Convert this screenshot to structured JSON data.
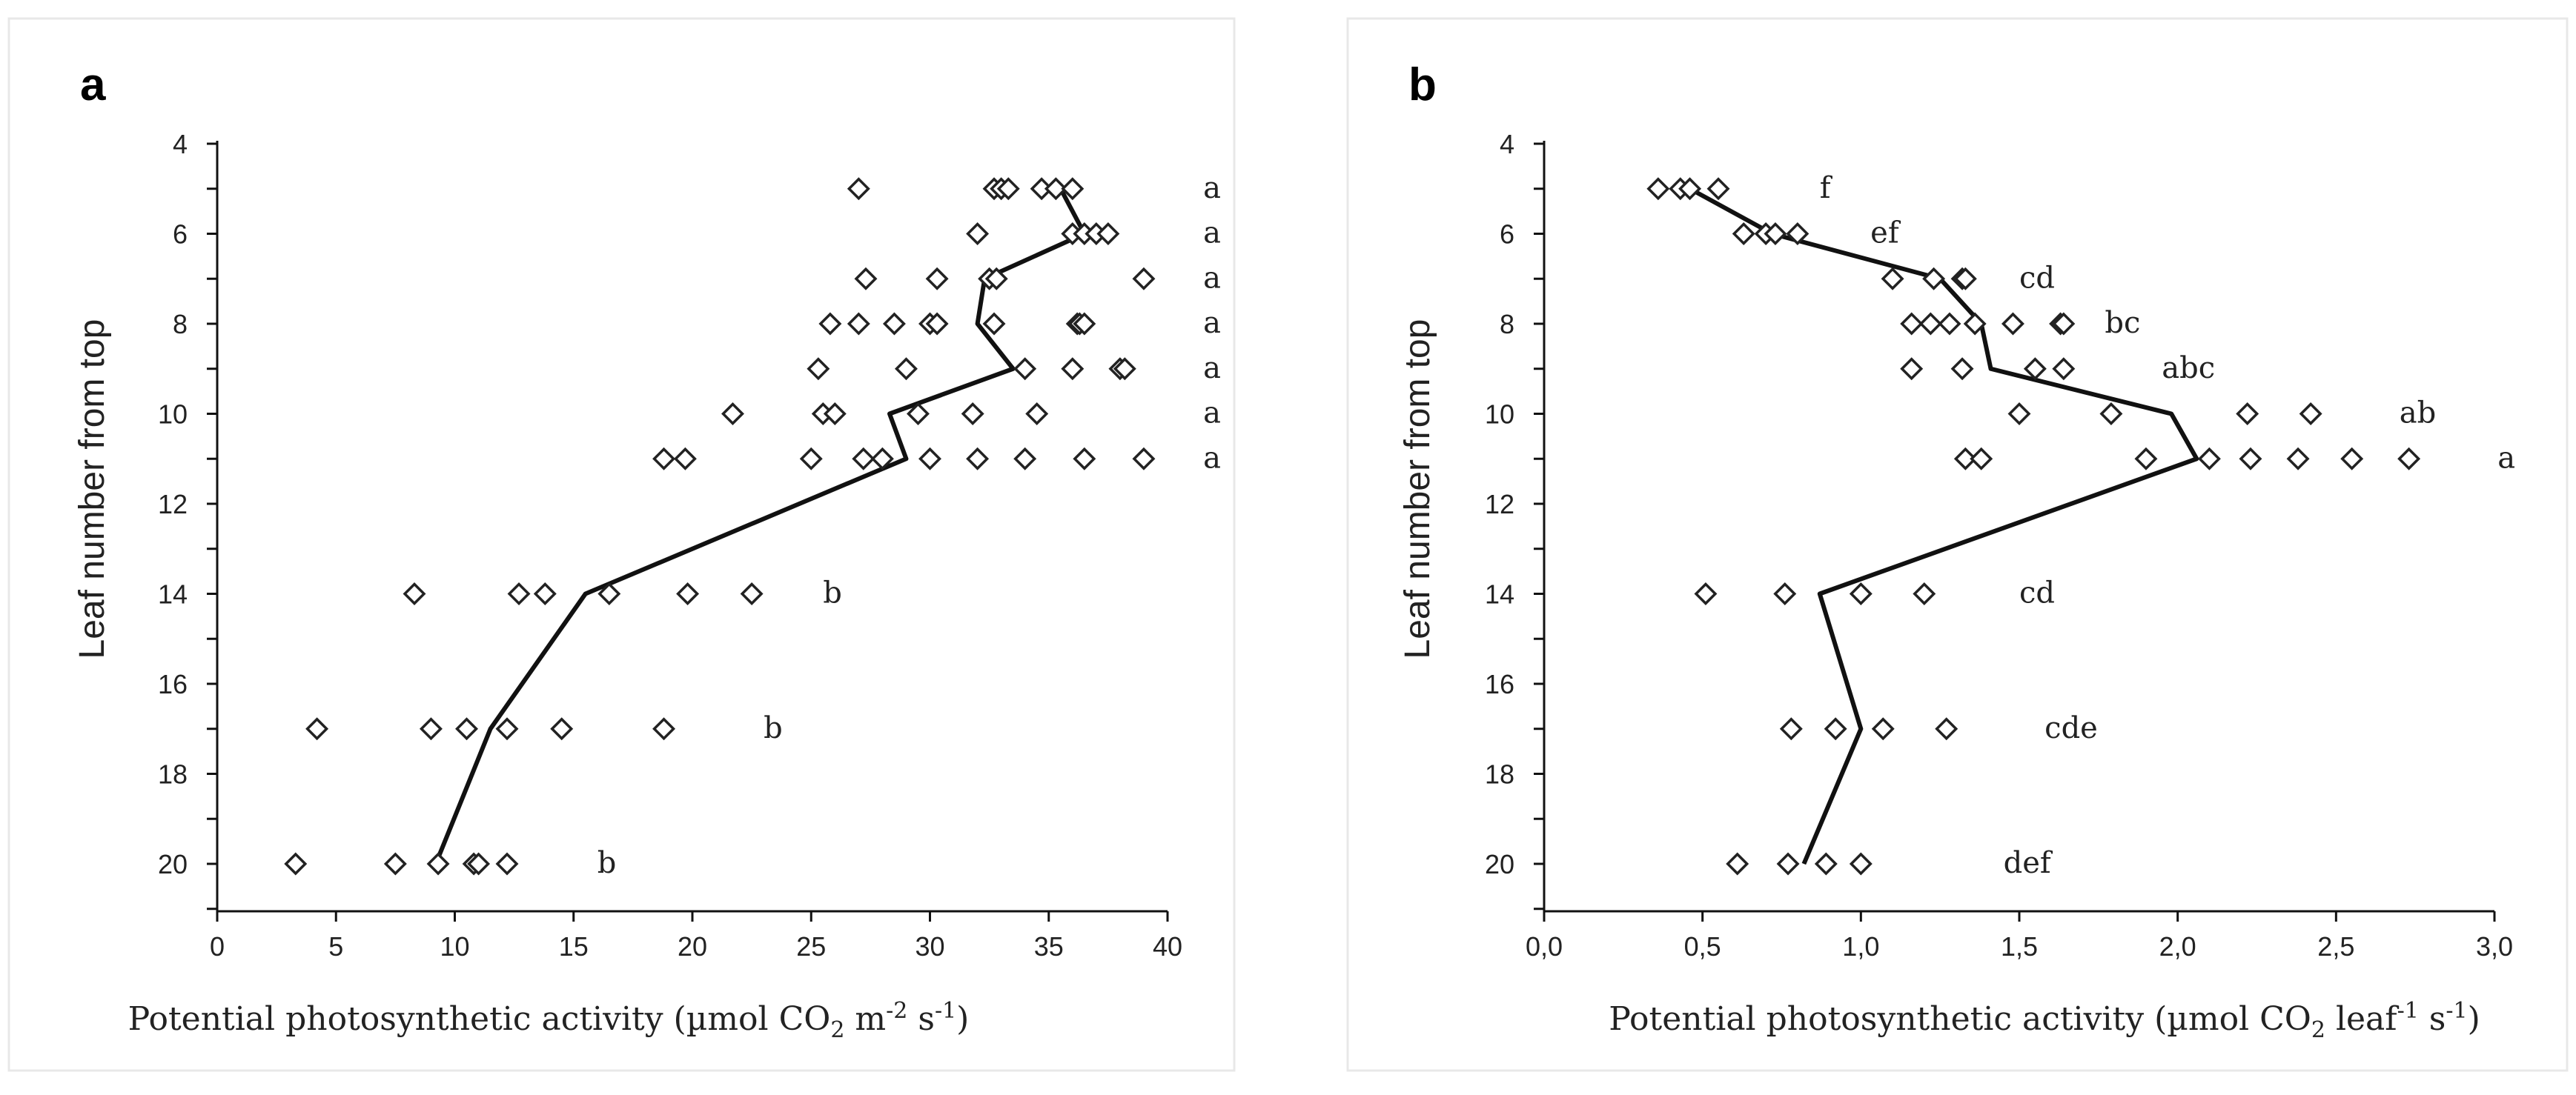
{
  "chart_data": [
    {
      "type": "scatter",
      "panel": "a",
      "xlabel_parts": [
        "Potential photosynthetic activity (µmol CO",
        "2",
        " m",
        "-2",
        " s",
        "-1",
        ")"
      ],
      "xlabel": "Potential photosynthetic activity (µmol CO2 m-2 s-1)",
      "ylabel": "Leaf number from top",
      "xlim": [
        0,
        40
      ],
      "ylim": [
        4,
        21
      ],
      "y_inverted": true,
      "x_ticks": [
        0,
        5,
        10,
        15,
        20,
        25,
        30,
        35,
        40
      ],
      "x_tick_labels": [
        "0",
        "5",
        "10",
        "15",
        "20",
        "25",
        "30",
        "35",
        "40"
      ],
      "y_ticks": [
        4,
        6,
        8,
        10,
        12,
        14,
        16,
        18,
        20
      ],
      "y_tick_labels": [
        "4",
        "6",
        "8",
        "10",
        "12",
        "14",
        "16",
        "18",
        "20"
      ],
      "points": [
        {
          "leaf": 5,
          "x": [
            27.0,
            32.7,
            33.0,
            33.3,
            34.7,
            35.3,
            36.0
          ]
        },
        {
          "leaf": 6,
          "x": [
            32.0,
            36.0,
            36.5,
            37.0,
            37.5
          ]
        },
        {
          "leaf": 7,
          "x": [
            27.3,
            30.3,
            32.5,
            32.8,
            39.0
          ]
        },
        {
          "leaf": 8,
          "x": [
            25.8,
            27.0,
            28.5,
            30.0,
            30.3,
            32.7,
            36.2,
            36.3,
            36.5
          ]
        },
        {
          "leaf": 9,
          "x": [
            25.3,
            29.0,
            34.0,
            36.0,
            38.0,
            38.2
          ]
        },
        {
          "leaf": 10,
          "x": [
            21.7,
            25.5,
            26.0,
            29.5,
            31.8,
            34.5
          ]
        },
        {
          "leaf": 11,
          "x": [
            18.8,
            19.7,
            25.0,
            27.2,
            28.0,
            30.0,
            32.0,
            34.0,
            36.5,
            39.0
          ]
        },
        {
          "leaf": 14,
          "x": [
            8.3,
            12.7,
            13.8,
            16.5,
            19.8,
            22.5
          ]
        },
        {
          "leaf": 17,
          "x": [
            4.2,
            9.0,
            10.5,
            12.2,
            14.5,
            18.8
          ]
        },
        {
          "leaf": 20,
          "x": [
            3.3,
            7.5,
            9.3,
            10.8,
            11.0,
            12.2
          ]
        }
      ],
      "mean_line": {
        "leaf": [
          5,
          6,
          7,
          8,
          9,
          10,
          11,
          14,
          17,
          20
        ],
        "x": [
          35.5,
          36.5,
          32.3,
          32.0,
          33.5,
          28.3,
          29.0,
          15.5,
          11.5,
          9.2
        ]
      },
      "significance": [
        {
          "leaf": 5,
          "x": 41.5,
          "label": "a"
        },
        {
          "leaf": 6,
          "x": 41.5,
          "label": "a"
        },
        {
          "leaf": 7,
          "x": 41.5,
          "label": "a"
        },
        {
          "leaf": 8,
          "x": 41.5,
          "label": "a"
        },
        {
          "leaf": 9,
          "x": 41.5,
          "label": "a"
        },
        {
          "leaf": 10,
          "x": 41.5,
          "label": "a"
        },
        {
          "leaf": 11,
          "x": 41.5,
          "label": "a"
        },
        {
          "leaf": 14,
          "x": 25.5,
          "label": "b"
        },
        {
          "leaf": 17,
          "x": 23.0,
          "label": "b"
        },
        {
          "leaf": 20,
          "x": 16.0,
          "label": "b"
        }
      ]
    },
    {
      "type": "scatter",
      "panel": "b",
      "xlabel_parts": [
        "Potential photosynthetic activity (µmol CO",
        "2",
        " leaf",
        "-1",
        " s",
        "-1",
        ")"
      ],
      "xlabel": "Potential photosynthetic activity (µmol CO2 leaf-1 s-1)",
      "ylabel": "Leaf number from top",
      "xlim": [
        0,
        3
      ],
      "ylim": [
        4,
        21
      ],
      "y_inverted": true,
      "x_ticks": [
        0,
        0.5,
        1,
        1.5,
        2,
        2.5,
        3
      ],
      "x_tick_labels": [
        "0,0",
        "0,5",
        "1,0",
        "1,5",
        "2,0",
        "2,5",
        "3,0"
      ],
      "y_ticks": [
        4,
        6,
        8,
        10,
        12,
        14,
        16,
        18,
        20
      ],
      "y_tick_labels": [
        "4",
        "6",
        "8",
        "10",
        "12",
        "14",
        "16",
        "18",
        "20"
      ],
      "points": [
        {
          "leaf": 5,
          "x": [
            0.36,
            0.43,
            0.46,
            0.55
          ]
        },
        {
          "leaf": 6,
          "x": [
            0.63,
            0.7,
            0.73,
            0.8
          ]
        },
        {
          "leaf": 7,
          "x": [
            1.1,
            1.23,
            1.32,
            1.33
          ]
        },
        {
          "leaf": 8,
          "x": [
            1.16,
            1.22,
            1.28,
            1.36,
            1.48,
            1.63,
            1.64
          ]
        },
        {
          "leaf": 9,
          "x": [
            1.16,
            1.32,
            1.55,
            1.64
          ]
        },
        {
          "leaf": 10,
          "x": [
            1.5,
            1.79,
            2.22,
            2.42
          ]
        },
        {
          "leaf": 11,
          "x": [
            1.33,
            1.38,
            1.9,
            2.1,
            2.23,
            2.38,
            2.55,
            2.73
          ]
        },
        {
          "leaf": 14,
          "x": [
            0.51,
            0.76,
            1.0,
            1.2
          ]
        },
        {
          "leaf": 17,
          "x": [
            0.78,
            0.92,
            1.07,
            1.27
          ]
        },
        {
          "leaf": 20,
          "x": [
            0.61,
            0.77,
            0.89,
            1.0
          ]
        }
      ],
      "mean_line": {
        "leaf": [
          5,
          6,
          7,
          8,
          9,
          10,
          11,
          14,
          17,
          20
        ],
        "x": [
          0.46,
          0.72,
          1.25,
          1.38,
          1.41,
          1.98,
          2.06,
          0.87,
          1.0,
          0.82
        ]
      },
      "significance": [
        {
          "leaf": 5,
          "x": 0.87,
          "label": "f"
        },
        {
          "leaf": 6,
          "x": 1.03,
          "label": "ef"
        },
        {
          "leaf": 7,
          "x": 1.5,
          "label": "cd"
        },
        {
          "leaf": 8,
          "x": 1.77,
          "label": "bc"
        },
        {
          "leaf": 9,
          "x": 1.95,
          "label": "abc"
        },
        {
          "leaf": 10,
          "x": 2.7,
          "label": "ab"
        },
        {
          "leaf": 11,
          "x": 3.01,
          "label": "a"
        },
        {
          "leaf": 14,
          "x": 1.5,
          "label": "cd"
        },
        {
          "leaf": 17,
          "x": 1.58,
          "label": "cde"
        },
        {
          "leaf": 20,
          "x": 1.45,
          "label": "def"
        }
      ]
    }
  ]
}
